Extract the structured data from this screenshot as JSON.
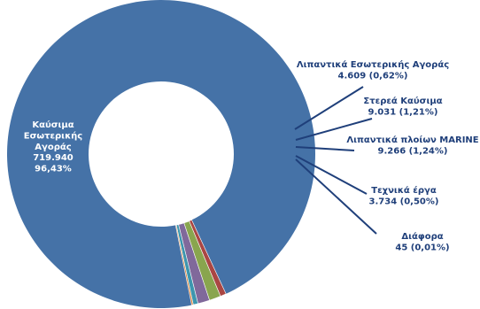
{
  "chart_data": {
    "type": "pie",
    "variant": "donut",
    "slices": [
      {
        "label": "Καύσιμα Εσωτερικής Αγοράς",
        "value": 719940,
        "value_text": "719.940",
        "percent": 96.43,
        "percent_text": "96,43%",
        "color": "#4572A7"
      },
      {
        "label": "Λιπαντικά Εσωτερικής Αγοράς",
        "value": 4609,
        "value_text": "4.609",
        "percent": 0.62,
        "percent_text": "(0,62%)",
        "color": "#AA4643"
      },
      {
        "label": "Στερεά Καύσιμα",
        "value": 9031,
        "value_text": "9.031",
        "percent": 1.21,
        "percent_text": "(1,21%)",
        "color": "#89A54E"
      },
      {
        "label": "Λιπαντικά πλοίων MARINE",
        "value": 9266,
        "value_text": "9.266",
        "percent": 1.24,
        "percent_text": "(1,24%)",
        "color": "#80699B"
      },
      {
        "label": "Τεχνικά έργα",
        "value": 3734,
        "value_text": "3.734",
        "percent": 0.5,
        "percent_text": "(0,50%)",
        "color": "#3D96AE"
      },
      {
        "label": "Διάφορα",
        "value": 45,
        "value_text": "45",
        "percent": 0.01,
        "percent_text": "(0,01%)",
        "color": "#DB843D"
      }
    ],
    "inside_label": {
      "lines": [
        "Καύσιμα",
        "Εσωτερικής",
        "Αγοράς",
        "719.940",
        "96,43%"
      ],
      "color": "#ffffff"
    },
    "outside_labels": [
      {
        "lines": [
          "Λιπαντικά Εσωτερικής Αγοράς",
          "4.609 (0,62%)"
        ]
      },
      {
        "lines": [
          "Στερεά Καύσιμα",
          "9.031 (1,21%)"
        ]
      },
      {
        "lines": [
          "Λιπαντικά πλοίων MARINE",
          "9.266 (1,24%)"
        ]
      },
      {
        "lines": [
          "Τεχνικά έργα",
          "3.734 (0,50%)"
        ]
      },
      {
        "lines": [
          "Διάφορα",
          "45 (0,01%)"
        ]
      }
    ],
    "label_color": "#1F3F7A",
    "leader_color": "#1F3F7A",
    "legend": "none"
  }
}
